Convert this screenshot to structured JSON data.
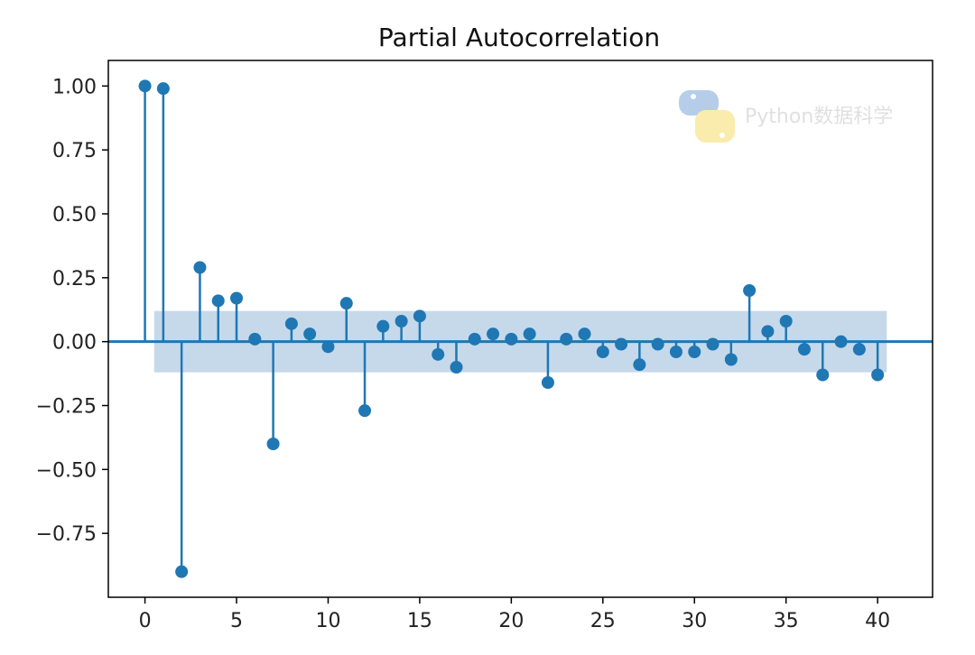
{
  "chart_data": {
    "type": "stem",
    "title": "Partial Autocorrelation",
    "xlabel": "",
    "ylabel": "",
    "xlim": [
      -2,
      43
    ],
    "ylim": [
      -1.0,
      1.1
    ],
    "xticks": [
      0,
      5,
      10,
      15,
      20,
      25,
      30,
      35,
      40
    ],
    "xtick_labels": [
      "0",
      "5",
      "10",
      "15",
      "20",
      "25",
      "30",
      "35",
      "40"
    ],
    "yticks": [
      1.0,
      0.75,
      0.5,
      0.25,
      0.0,
      -0.25,
      -0.5,
      -0.75
    ],
    "ytick_labels": [
      "1.00",
      "0.75",
      "0.50",
      "0.25",
      "0.00",
      "−0.25",
      "−0.50",
      "−0.75"
    ],
    "grid": false,
    "confidence_band": {
      "x_range": [
        0.5,
        40.5
      ],
      "upper": 0.12,
      "lower": -0.12
    },
    "x": [
      0,
      1,
      2,
      3,
      4,
      5,
      6,
      7,
      8,
      9,
      10,
      11,
      12,
      13,
      14,
      15,
      16,
      17,
      18,
      19,
      20,
      21,
      22,
      23,
      24,
      25,
      26,
      27,
      28,
      29,
      30,
      31,
      32,
      33,
      34,
      35,
      36,
      37,
      38,
      39,
      40
    ],
    "values": [
      1.0,
      0.99,
      -0.9,
      0.29,
      0.16,
      0.17,
      0.01,
      -0.4,
      0.07,
      0.03,
      -0.02,
      0.15,
      -0.27,
      0.06,
      0.08,
      0.1,
      -0.05,
      -0.1,
      0.01,
      0.03,
      0.01,
      0.03,
      -0.16,
      0.01,
      0.03,
      -0.04,
      -0.01,
      -0.09,
      -0.01,
      -0.04,
      -0.04,
      -0.01,
      -0.07,
      0.2,
      0.04,
      0.08,
      -0.03,
      -0.13,
      0.0,
      -0.03,
      -0.13
    ],
    "colors": {
      "stem": "#1f77b4",
      "band": "#c6d9ea",
      "axis": "#000000"
    }
  },
  "watermark": {
    "text": "Python数据科学",
    "icon": "python-logo-icon"
  }
}
